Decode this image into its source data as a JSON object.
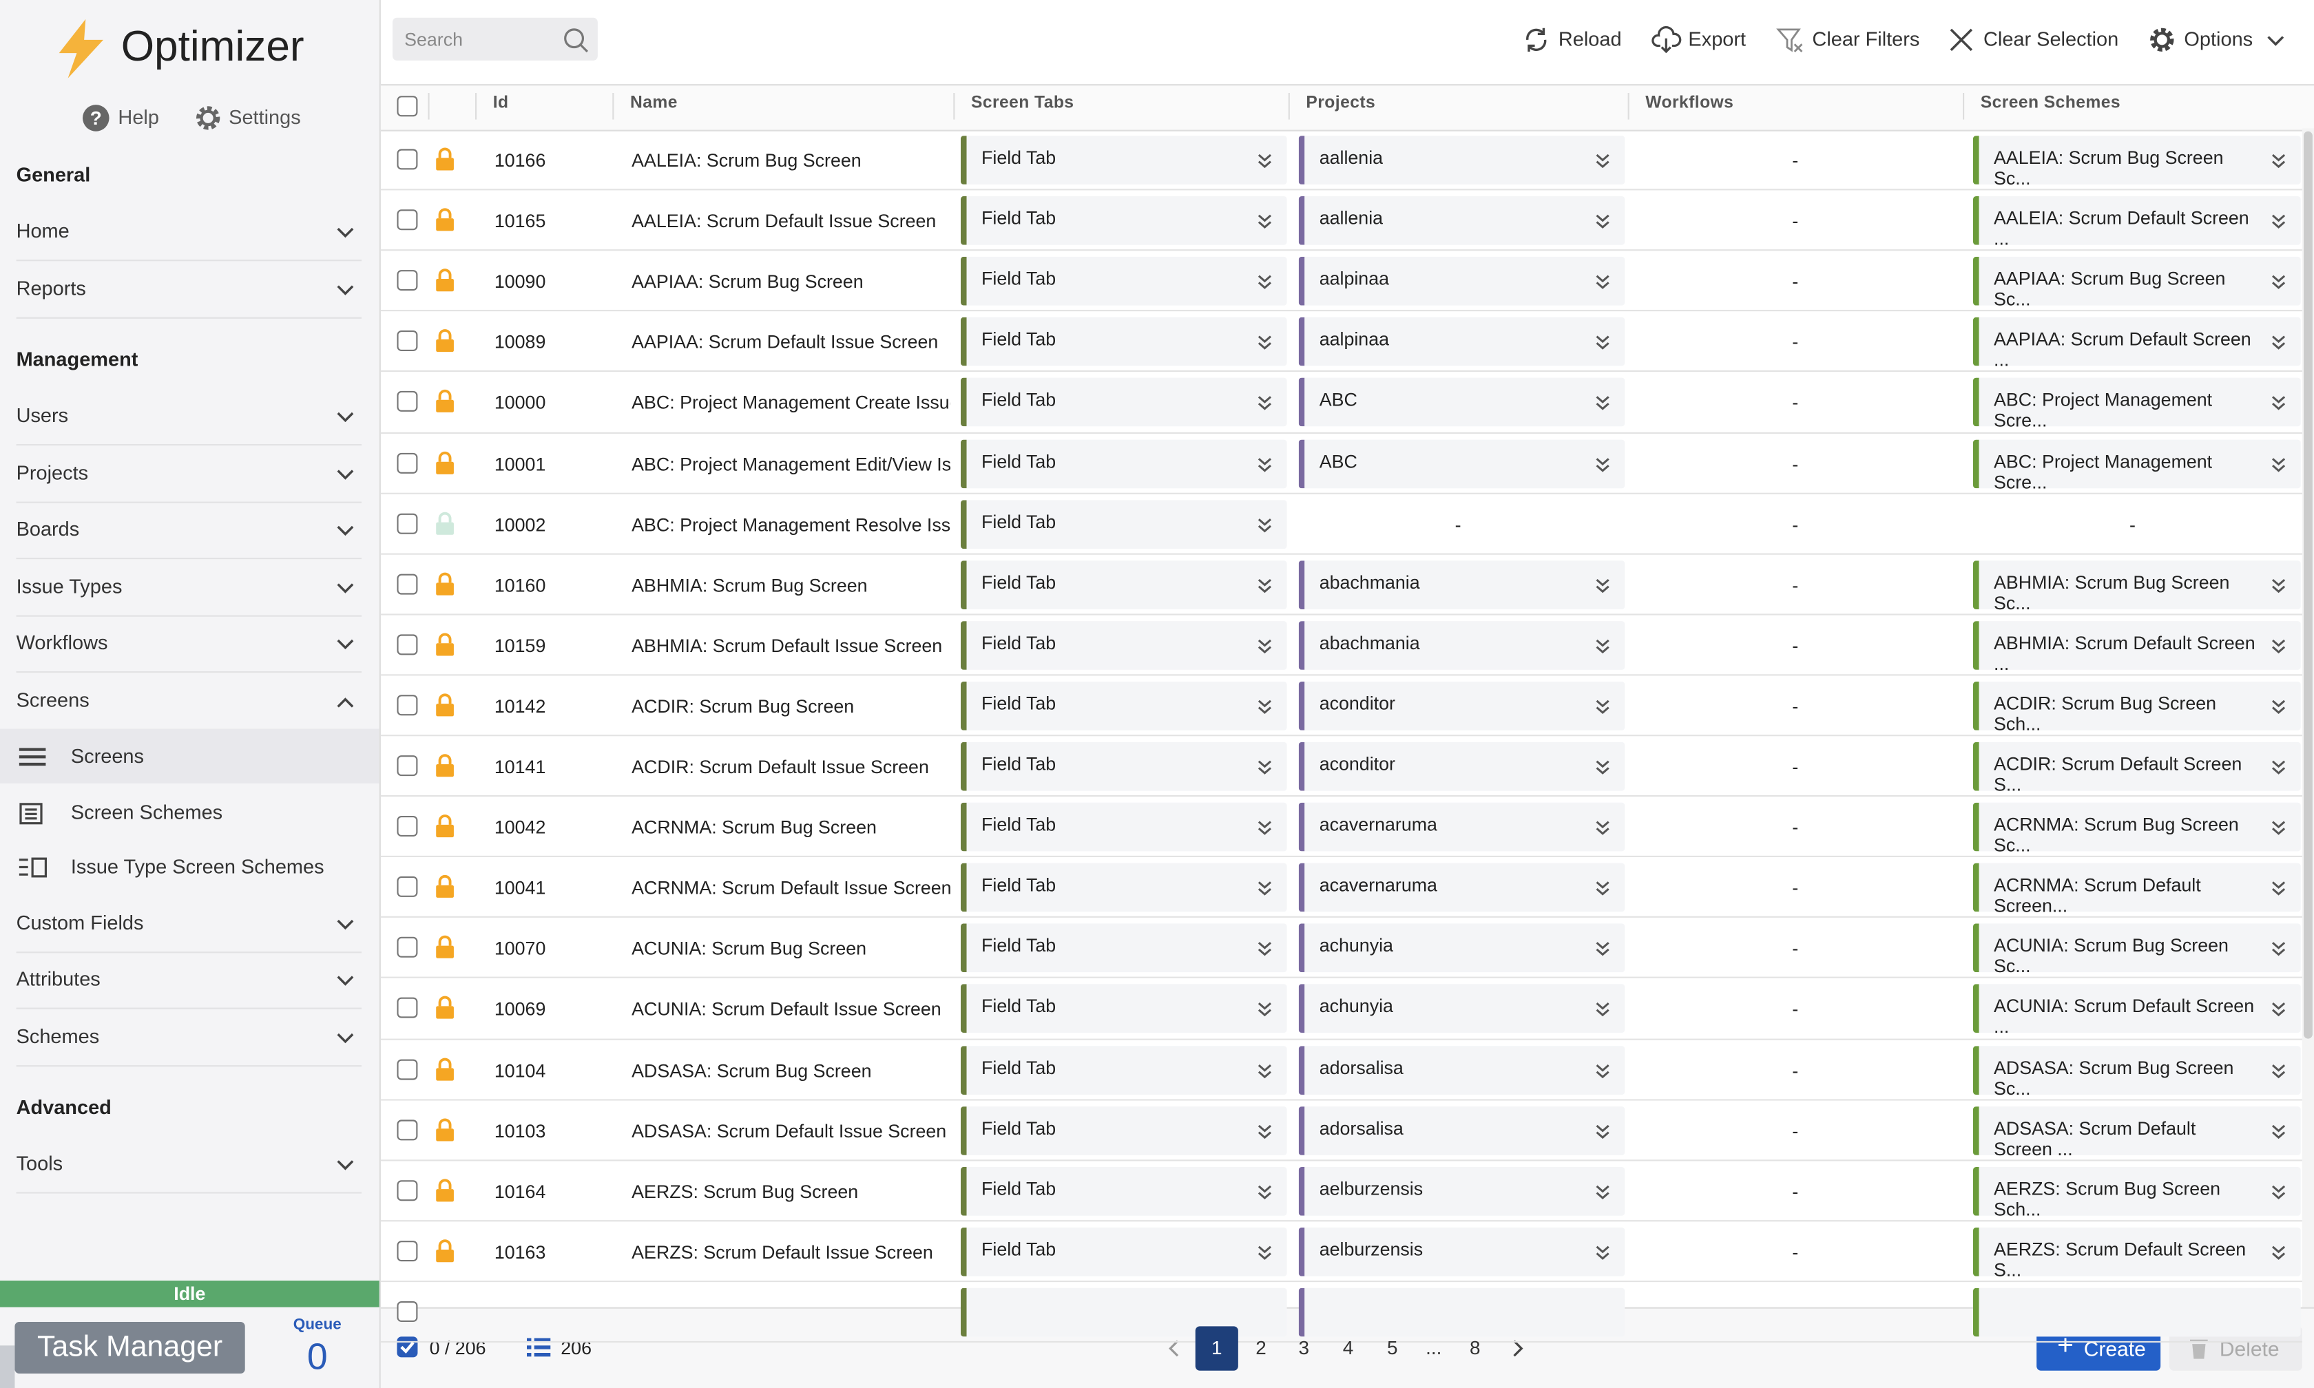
{
  "app": {
    "title": "Optimizer",
    "help": "Help",
    "settings": "Settings"
  },
  "nav": [
    {
      "title": "General",
      "items": [
        {
          "label": "Home"
        },
        {
          "label": "Reports"
        }
      ]
    },
    {
      "title": "Management",
      "items": [
        {
          "label": "Users"
        },
        {
          "label": "Projects"
        },
        {
          "label": "Boards"
        },
        {
          "label": "Issue Types"
        },
        {
          "label": "Workflows"
        },
        {
          "label": "Screens",
          "children": [
            "Screens",
            "Screen Schemes",
            "Issue Type Screen Schemes"
          ]
        },
        {
          "label": "Custom Fields"
        },
        {
          "label": "Attributes"
        },
        {
          "label": "Schemes"
        }
      ]
    },
    {
      "title": "Advanced",
      "items": [
        {
          "label": "Tools"
        }
      ]
    }
  ],
  "toolbar": {
    "search": "Search",
    "buttons": [
      "Reload",
      "Export",
      "Clear Filters",
      "Clear Selection",
      "Options"
    ]
  },
  "table": {
    "columns": [
      "Id",
      "Name",
      "Screen Tabs",
      "Projects",
      "Workflows",
      "Screen Schemes"
    ],
    "rows": [
      {
        "id": 10166,
        "name": "AALEIA: Scrum Bug Screen",
        "tab": "Field Tab",
        "project": "aallenia",
        "workflow": "-",
        "scheme": "AALEIA: Scrum Bug Screen Sc...",
        "locked": true
      },
      {
        "id": 10165,
        "name": "AALEIA: Scrum Default Issue Screen",
        "tab": "Field Tab",
        "project": "aallenia",
        "workflow": "-",
        "scheme": "AALEIA: Scrum Default Screen ...",
        "locked": true
      },
      {
        "id": 10090,
        "name": "AAPIAA: Scrum Bug Screen",
        "tab": "Field Tab",
        "project": "aalpinaa",
        "workflow": "-",
        "scheme": "AAPIAA: Scrum Bug Screen Sc...",
        "locked": true
      },
      {
        "id": 10089,
        "name": "AAPIAA: Scrum Default Issue Screen",
        "tab": "Field Tab",
        "project": "aalpinaa",
        "workflow": "-",
        "scheme": "AAPIAA: Scrum Default Screen ...",
        "locked": true
      },
      {
        "id": 10000,
        "name": "ABC: Project Management Create Issue S",
        "tab": "Field Tab",
        "project": "ABC",
        "workflow": "-",
        "scheme": "ABC: Project Management Scre...",
        "locked": true
      },
      {
        "id": 10001,
        "name": "ABC: Project Management Edit/View Issu",
        "tab": "Field Tab",
        "project": "ABC",
        "workflow": "-",
        "scheme": "ABC: Project Management Scre...",
        "locked": true
      },
      {
        "id": 10002,
        "name": "ABC: Project Management Resolve Issue",
        "tab": "Field Tab",
        "project": "-",
        "workflow": "-",
        "scheme": "-",
        "locked": false
      },
      {
        "id": 10160,
        "name": "ABHMIA: Scrum Bug Screen",
        "tab": "Field Tab",
        "project": "abachmania",
        "workflow": "-",
        "scheme": "ABHMIA: Scrum Bug Screen Sc...",
        "locked": true
      },
      {
        "id": 10159,
        "name": "ABHMIA: Scrum Default Issue Screen",
        "tab": "Field Tab",
        "project": "abachmania",
        "workflow": "-",
        "scheme": "ABHMIA: Scrum Default Screen ...",
        "locked": true
      },
      {
        "id": 10142,
        "name": "ACDIR: Scrum Bug Screen",
        "tab": "Field Tab",
        "project": "aconditor",
        "workflow": "-",
        "scheme": "ACDIR: Scrum Bug Screen Sch...",
        "locked": true
      },
      {
        "id": 10141,
        "name": "ACDIR: Scrum Default Issue Screen",
        "tab": "Field Tab",
        "project": "aconditor",
        "workflow": "-",
        "scheme": "ACDIR: Scrum Default Screen S...",
        "locked": true
      },
      {
        "id": 10042,
        "name": "ACRNMA: Scrum Bug Screen",
        "tab": "Field Tab",
        "project": "acavernaruma",
        "workflow": "-",
        "scheme": "ACRNMA: Scrum Bug Screen Sc...",
        "locked": true
      },
      {
        "id": 10041,
        "name": "ACRNMA: Scrum Default Issue Screen",
        "tab": "Field Tab",
        "project": "acavernaruma",
        "workflow": "-",
        "scheme": "ACRNMA: Scrum Default Screen...",
        "locked": true
      },
      {
        "id": 10070,
        "name": "ACUNIA: Scrum Bug Screen",
        "tab": "Field Tab",
        "project": "achunyia",
        "workflow": "-",
        "scheme": "ACUNIA: Scrum Bug Screen Sc...",
        "locked": true
      },
      {
        "id": 10069,
        "name": "ACUNIA: Scrum Default Issue Screen",
        "tab": "Field Tab",
        "project": "achunyia",
        "workflow": "-",
        "scheme": "ACUNIA: Scrum Default Screen ...",
        "locked": true
      },
      {
        "id": 10104,
        "name": "ADSASA: Scrum Bug Screen",
        "tab": "Field Tab",
        "project": "adorsalisa",
        "workflow": "-",
        "scheme": "ADSASA: Scrum Bug Screen Sc...",
        "locked": true
      },
      {
        "id": 10103,
        "name": "ADSASA: Scrum Default Issue Screen",
        "tab": "Field Tab",
        "project": "adorsalisa",
        "workflow": "-",
        "scheme": "ADSASA: Scrum Default Screen ...",
        "locked": true
      },
      {
        "id": 10164,
        "name": "AERZS: Scrum Bug Screen",
        "tab": "Field Tab",
        "project": "aelburzensis",
        "workflow": "-",
        "scheme": "AERZS: Scrum Bug Screen Sch...",
        "locked": true
      },
      {
        "id": 10163,
        "name": "AERZS: Scrum Default Issue Screen",
        "tab": "Field Tab",
        "project": "aelburzensis",
        "workflow": "-",
        "scheme": "AERZS: Scrum Default Screen S...",
        "locked": true
      }
    ]
  },
  "footer": {
    "selection": "0 / 206",
    "count": "206",
    "pages": [
      "1",
      "2",
      "3",
      "4",
      "5",
      "...",
      "8"
    ],
    "create": "Create",
    "delete": "Delete"
  },
  "status": {
    "state": "Idle",
    "task_manager": "Task Manager",
    "queue_label": "Queue",
    "queue": 0
  }
}
